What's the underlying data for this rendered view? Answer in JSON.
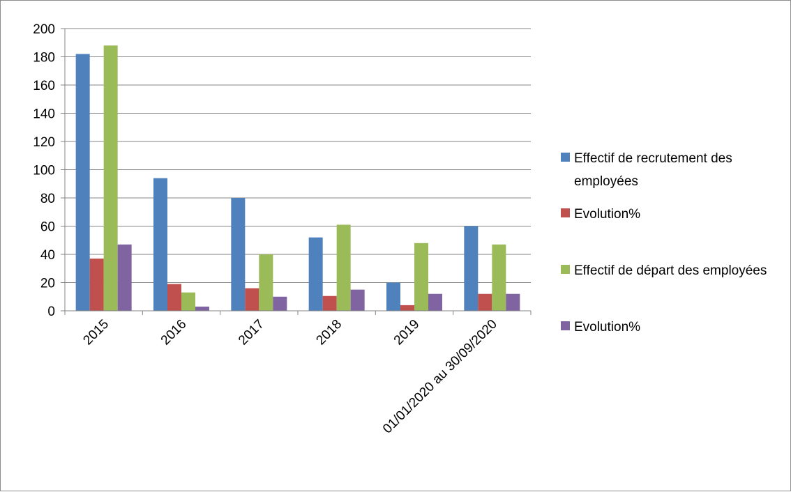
{
  "chart_data": {
    "type": "bar",
    "categories": [
      "2015",
      "2016",
      "2017",
      "2018",
      "2019",
      "01/01/2020 au 30/09/2020"
    ],
    "series": [
      {
        "name": "Effectif de recrutement des employées",
        "values": [
          182,
          94,
          80,
          52,
          20,
          60
        ],
        "color": "#4f81bd"
      },
      {
        "name": "Evolution%",
        "values": [
          37,
          19,
          16,
          10.5,
          4,
          12
        ],
        "color": "#c0504d"
      },
      {
        "name": "Effectif de départ des employées",
        "values": [
          188,
          13,
          40,
          61,
          48,
          47
        ],
        "color": "#9bbb59"
      },
      {
        "name": "Evolution%",
        "values": [
          47,
          3,
          10,
          15,
          12,
          12
        ],
        "color": "#8064a2"
      }
    ],
    "ylim": [
      0,
      200
    ],
    "yticks": [
      0,
      20,
      40,
      60,
      80,
      100,
      120,
      140,
      160,
      180,
      200
    ],
    "grid": true,
    "legend_position": "right"
  }
}
